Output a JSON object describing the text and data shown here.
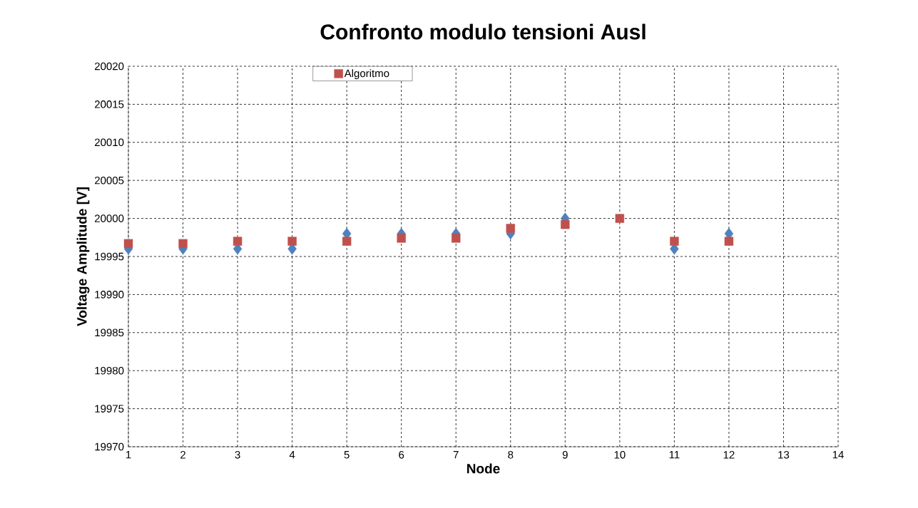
{
  "chart_data": {
    "type": "scatter",
    "title": "Confronto modulo tensioni Ausl",
    "xlabel": "Node",
    "ylabel": "Voltage Amplitude [V]",
    "x": [
      1,
      2,
      3,
      4,
      5,
      6,
      7,
      8,
      9,
      10,
      11,
      12
    ],
    "series": [
      {
        "color": "#4f81bd",
        "marker": "diamond",
        "values": [
          19996,
          19996,
          19996,
          19996,
          19998,
          19998,
          19998,
          19998,
          20000,
          null,
          19996,
          19998
        ]
      },
      {
        "name": "Algoritmo",
        "color": "#c0504d",
        "marker": "square",
        "values": [
          19996.7,
          19996.7,
          19997.0,
          19997.0,
          19997.0,
          19997.4,
          19997.4,
          19998.7,
          19999.2,
          20000,
          19997.0,
          19997.0
        ]
      }
    ],
    "xlim": [
      1,
      14
    ],
    "xticks": [
      1,
      2,
      3,
      4,
      5,
      6,
      7,
      8,
      9,
      10,
      11,
      12,
      13,
      14
    ],
    "ylim": [
      19970,
      20020
    ],
    "yticks": [
      19970,
      19975,
      19980,
      19985,
      19990,
      19995,
      20000,
      20005,
      20010,
      20015,
      20020
    ],
    "grid": true,
    "legend": "top"
  }
}
